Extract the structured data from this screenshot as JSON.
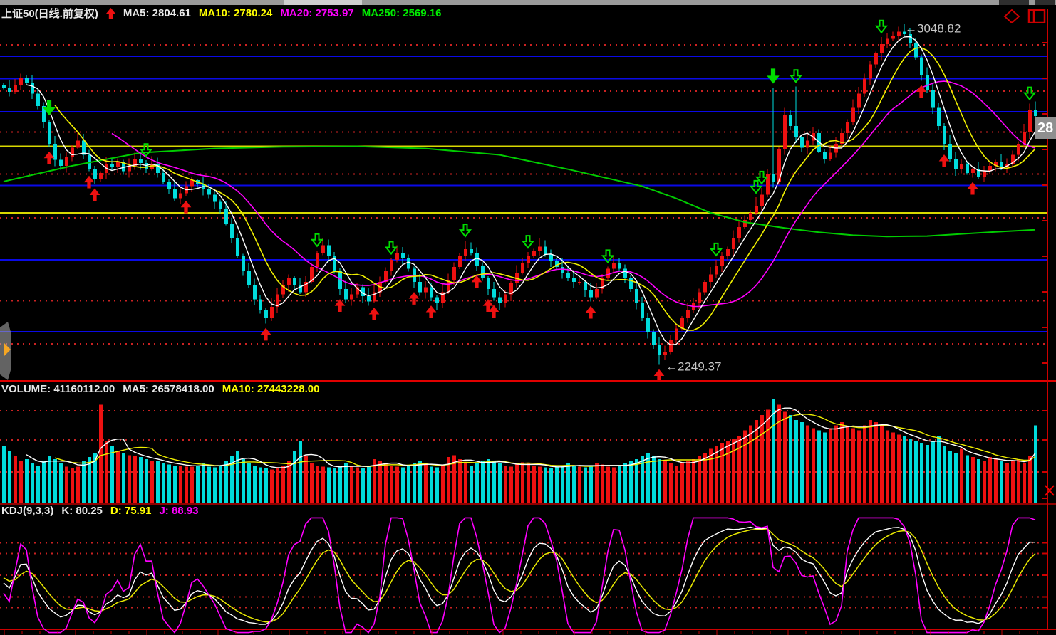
{
  "header": {
    "symbol": "上证50(日线.前复权)",
    "ma_items": [
      {
        "label": "MA5: 2804.61",
        "color": "#e8e8e8"
      },
      {
        "label": "MA10: 2780.24",
        "color": "#ffff00"
      },
      {
        "label": "MA20: 2753.97",
        "color": "#ff00ff"
      },
      {
        "label": "MA250: 2569.16",
        "color": "#00ee00"
      }
    ]
  },
  "volume_header": {
    "label": "VOLUME: 41160112.00",
    "ma5": "MA5: 26578418.00",
    "ma10": "MA10: 27443228.00"
  },
  "kdj_header": {
    "label": "KDJ(9,3,3)",
    "k": "K: 80.25",
    "d": "D: 75.91",
    "j": "J: 88.93"
  },
  "icons": {
    "diamond": "diamond-marker-tool",
    "split": "split-window-tool",
    "expand_handle": "left-panel-expand"
  },
  "colors": {
    "up": "#ee1111",
    "down": "#00dcdc",
    "ma5": "#ffffff",
    "ma10": "#f0f000",
    "ma20": "#ff00ff",
    "ma250": "#00cc00",
    "grid_blue": "#0a0ae6",
    "grid_yellow": "#d8d800",
    "grid_red_dotted": "#cc2222",
    "pane_border": "#cc0000",
    "annotation": "#c8c8c8",
    "signal_buy": "#ee1111",
    "signal_sell": "#00dd00"
  },
  "chart_data": [
    {
      "type": "candlestick",
      "title": "上证50(日线.前复权)",
      "price_range": [
        2215,
        3065
      ],
      "ma_values": {
        "MA5": 2804.61,
        "MA10": 2780.24,
        "MA20": 2753.97,
        "MA250": 2569.16
      },
      "closes": [
        2905,
        2895,
        2912,
        2929,
        2917,
        2891,
        2861,
        2823,
        2772,
        2734,
        2720,
        2741,
        2763,
        2780,
        2746,
        2712,
        2689,
        2703,
        2724,
        2717,
        2729,
        2707,
        2720,
        2737,
        2727,
        2713,
        2724,
        2703,
        2683,
        2665,
        2643,
        2655,
        2672,
        2686,
        2677,
        2665,
        2652,
        2635,
        2618,
        2583,
        2549,
        2506,
        2472,
        2438,
        2404,
        2378,
        2361,
        2387,
        2416,
        2438,
        2455,
        2438,
        2421,
        2446,
        2481,
        2515,
        2532,
        2506,
        2472,
        2429,
        2404,
        2416,
        2433,
        2412,
        2399,
        2421,
        2446,
        2472,
        2498,
        2515,
        2501,
        2477,
        2446,
        2421,
        2433,
        2409,
        2395,
        2421,
        2450,
        2481,
        2506,
        2523,
        2515,
        2484,
        2455,
        2429,
        2409,
        2395,
        2416,
        2443,
        2467,
        2489,
        2506,
        2518,
        2529,
        2511,
        2494,
        2481,
        2467,
        2455,
        2446,
        2446,
        2426,
        2409,
        2429,
        2455,
        2477,
        2489,
        2477,
        2455,
        2429,
        2395,
        2361,
        2327,
        2296,
        2272,
        2279,
        2309,
        2335,
        2361,
        2378,
        2395,
        2421,
        2446,
        2463,
        2484,
        2506,
        2523,
        2549,
        2575,
        2592,
        2609,
        2626,
        2652,
        2700,
        2682,
        2760,
        2840,
        2814,
        2789,
        2763,
        2780,
        2797,
        2754,
        2737,
        2751,
        2772,
        2797,
        2823,
        2857,
        2891,
        2926,
        2960,
        2986,
        3008,
        3020,
        3028,
        3037,
        3031,
        3011,
        2977,
        2934,
        2900,
        2857,
        2814,
        2772,
        2737,
        2712,
        2724,
        2703,
        2712,
        2695,
        2707,
        2720,
        2729,
        2717,
        2724,
        2746,
        2772,
        2800,
        2852,
        2838
      ],
      "wick_overrides": {
        "115": {
          "low": 2249.37
        },
        "135": {
          "high": 2904
        },
        "139": {
          "high": 2908
        },
        "157": {
          "high": 3048.82
        },
        "181": {
          "high": 2872
        }
      },
      "ma250_points": [
        [
          0,
          2683
        ],
        [
          12,
          2720
        ],
        [
          24,
          2751
        ],
        [
          37,
          2761
        ],
        [
          49,
          2765
        ],
        [
          62,
          2766
        ],
        [
          74,
          2761
        ],
        [
          87,
          2746
        ],
        [
          99,
          2712
        ],
        [
          112,
          2672
        ],
        [
          118,
          2643
        ],
        [
          124,
          2609
        ],
        [
          130,
          2587
        ],
        [
          137,
          2573
        ],
        [
          143,
          2563
        ],
        [
          149,
          2556
        ],
        [
          155,
          2553
        ],
        [
          162,
          2554
        ],
        [
          168,
          2559
        ],
        [
          174,
          2564
        ],
        [
          181,
          2569
        ]
      ],
      "levels": {
        "blue_solid": [
          2979,
          2926,
          2848,
          2674,
          2498,
          2328
        ],
        "yellow_solid": [
          2766,
          2609
        ],
        "red_dotted": [
          3006,
          2897,
          2800,
          2701,
          2597,
          2401,
          2299
        ]
      },
      "signals": {
        "buy": [
          8,
          15,
          16,
          32,
          46,
          59,
          65,
          72,
          75,
          83,
          85,
          86,
          103,
          115,
          161,
          165,
          170
        ],
        "sell": [
          8,
          135
        ],
        "sell_hollow": [
          25,
          55,
          68,
          81,
          92,
          106,
          125,
          132,
          133,
          139,
          154,
          180
        ]
      },
      "annotations": [
        {
          "i": 157,
          "text": "←3048.82",
          "pos": "high"
        },
        {
          "i": 115,
          "text": "←2249.37",
          "pos": "low"
        }
      ],
      "last_price_tag": "28"
    },
    {
      "type": "bar",
      "name": "VOLUME",
      "latest": 41160112.0,
      "ma5": 26578418.0,
      "ma10": 27443228.0,
      "axis": "unlabeled, values relative 0-100",
      "values": [
        55,
        50,
        45,
        40,
        42,
        38,
        36,
        40,
        45,
        42,
        38,
        35,
        33,
        35,
        40,
        44,
        48,
        95,
        60,
        55,
        50,
        48,
        46,
        45,
        44,
        42,
        40,
        40,
        38,
        37,
        36,
        36,
        35,
        35,
        36,
        38,
        35,
        34,
        36,
        40,
        45,
        50,
        42,
        38,
        36,
        34,
        33,
        32,
        34,
        36,
        40,
        50,
        60,
        45,
        38,
        36,
        35,
        34,
        33,
        35,
        38,
        36,
        34,
        33,
        35,
        42,
        40,
        38,
        36,
        35,
        34,
        36,
        38,
        40,
        37,
        35,
        34,
        36,
        44,
        46,
        42,
        38,
        36,
        38,
        40,
        42,
        40,
        38,
        36,
        35,
        37,
        39,
        38,
        36,
        35,
        34,
        33,
        35,
        36,
        38,
        36,
        35,
        34,
        36,
        38,
        37,
        35,
        34,
        36,
        38,
        40,
        42,
        45,
        48,
        45,
        42,
        40,
        38,
        36,
        38,
        40,
        42,
        45,
        48,
        52,
        55,
        58,
        60,
        62,
        65,
        70,
        75,
        80,
        85,
        90,
        100,
        95,
        88,
        85,
        80,
        78,
        75,
        72,
        70,
        68,
        72,
        75,
        78,
        74,
        72,
        70,
        75,
        80,
        78,
        74,
        70,
        68,
        66,
        64,
        62,
        60,
        58,
        56,
        60,
        64,
        55,
        50,
        48,
        52,
        46,
        44,
        42,
        40,
        44,
        42,
        40,
        38,
        40,
        42,
        38,
        45,
        75
      ]
    },
    {
      "type": "line",
      "name": "KDJ",
      "params": [
        9,
        3,
        3
      ],
      "k": 80.25,
      "d": 75.91,
      "j": 88.93,
      "series_colors": {
        "K": "#ffffff",
        "D": "#e8e800",
        "J": "#ff00ff"
      },
      "dotted_levels": [
        80,
        70,
        50,
        30,
        20
      ],
      "derived_from": "candlestick ohlc, KDJ(9,3,3) formula"
    }
  ]
}
